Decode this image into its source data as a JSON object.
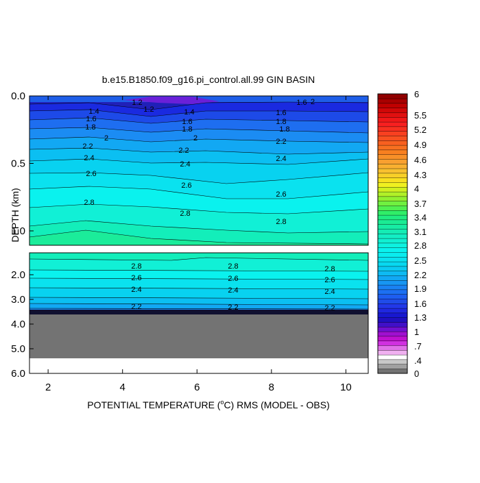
{
  "chart_data": {
    "type": "contour",
    "title": "b.e15.B1850.f09_g16.pi_control.all.99 GIN BASIN",
    "xlabel_pre": "POTENTIAL TEMPERATURE (",
    "xlabel_sup": "o",
    "xlabel_post": "C) RMS (MODEL - OBS)",
    "ylabel": "DEPTH (km)",
    "xlim": [
      1.5,
      10.6
    ],
    "x_ticks": [
      "2",
      "4",
      "6",
      "8",
      "10"
    ],
    "y_ticks_upper": [
      "0.0",
      "0.5",
      "1.0"
    ],
    "y_ticks_lower": [
      "2.0",
      "3.0",
      "4.0",
      "5.0",
      "6.0"
    ],
    "upper_panel_depth_range_km": [
      0.0,
      1.1
    ],
    "lower_panel_depth_range_km": [
      1.1,
      6.0
    ],
    "land_mask_depth_km": [
      3.6,
      5.35
    ],
    "colorbar_labels": [
      "6",
      "5.5",
      "5.2",
      "4.9",
      "4.6",
      "4.3",
      "4",
      "3.7",
      "3.4",
      "3.1",
      "2.8",
      "2.5",
      "2.2",
      "1.9",
      "1.6",
      "1.3",
      "1",
      ".7",
      ".4",
      "0"
    ],
    "contour_labels_upper": [
      "1.2",
      "1.2",
      "1.4",
      "1.4",
      "1.6",
      "1.6",
      "1.6",
      "1.6",
      "1.8",
      "1.8",
      "1.8",
      "1.8",
      "2",
      "2",
      "2",
      "2.2",
      "2.2",
      "2.2",
      "2.4",
      "2.4",
      "2.4",
      "2.6",
      "2.6",
      "2.6",
      "2.8",
      "2.8",
      "2.8"
    ],
    "contour_labels_lower": [
      "2.8",
      "2.8",
      "2.8",
      "2.6",
      "2.6",
      "2.6",
      "2.4",
      "2.4",
      "2.4",
      "2.2",
      "2.2",
      "2.2"
    ],
    "colors": {
      "land": "#737373",
      "contour_line": "#000000",
      "frame": "#000000"
    }
  }
}
